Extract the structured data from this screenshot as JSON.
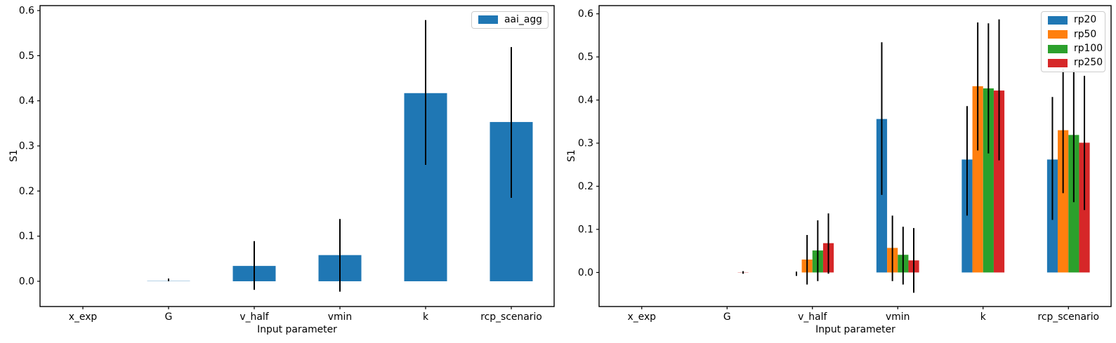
{
  "styles": {
    "background": "#ffffff",
    "spine_color": "#000000",
    "tick_color": "#000000",
    "error_bar_color": "#000000",
    "legend_border": "#cccccc"
  },
  "chart_data": [
    {
      "type": "bar",
      "panel": "left",
      "title": "",
      "xlabel": "Input parameter",
      "ylabel": "S1",
      "categories": [
        "x_exp",
        "G",
        "v_half",
        "vmin",
        "k",
        "rcp_scenario"
      ],
      "yticks": [
        0.0,
        0.1,
        0.2,
        0.3,
        0.4,
        0.5,
        0.6
      ],
      "ylim": [
        -0.056,
        0.611
      ],
      "grid": false,
      "legend_position": "upper right",
      "bar_group_fraction": 0.5,
      "series": [
        {
          "name": "aai_agg",
          "color": "#1f77b4",
          "values": [
            0,
            0.0005,
            0.034,
            0.058,
            0.417,
            0.353
          ],
          "err_low": [
            null,
            0.0002,
            -0.019,
            -0.023,
            0.258,
            0.185
          ],
          "err_high": [
            null,
            0.006,
            0.089,
            0.138,
            0.579,
            0.519
          ]
        }
      ]
    },
    {
      "type": "bar",
      "panel": "right",
      "title": "",
      "xlabel": "Input parameter",
      "ylabel": "S1",
      "categories": [
        "x_exp",
        "G",
        "v_half",
        "vmin",
        "k",
        "rcp_scenario"
      ],
      "yticks": [
        0.0,
        0.1,
        0.2,
        0.3,
        0.4,
        0.5,
        0.6
      ],
      "ylim": [
        -0.079,
        0.619
      ],
      "grid": false,
      "legend_position": "upper right",
      "bar_group_fraction": 0.5,
      "series": [
        {
          "name": "rp20",
          "color": "#1f77b4",
          "values": [
            0,
            0,
            0,
            0.356,
            0.262,
            0.262
          ],
          "err_low": [
            null,
            null,
            -0.008,
            0.18,
            0.132,
            0.122
          ],
          "err_high": [
            null,
            null,
            0.002,
            0.534,
            0.386,
            0.407
          ]
        },
        {
          "name": "rp50",
          "color": "#ff7f0e",
          "values": [
            0,
            0,
            0.03,
            0.057,
            0.432,
            0.33
          ],
          "err_low": [
            null,
            null,
            -0.028,
            -0.02,
            0.283,
            0.184
          ],
          "err_high": [
            null,
            null,
            0.087,
            0.132,
            0.58,
            0.474
          ]
        },
        {
          "name": "rp100",
          "color": "#2ca02c",
          "values": [
            0,
            0,
            0.051,
            0.041,
            0.427,
            0.319
          ],
          "err_low": [
            null,
            null,
            -0.02,
            -0.028,
            0.276,
            0.163
          ],
          "err_high": [
            null,
            null,
            0.121,
            0.106,
            0.578,
            0.47
          ]
        },
        {
          "name": "rp250",
          "color": "#d62728",
          "values": [
            0,
            0.0005,
            0.068,
            0.028,
            0.422,
            0.301
          ],
          "err_low": [
            null,
            -0.003,
            -0.003,
            -0.047,
            0.26,
            0.145
          ],
          "err_high": [
            null,
            0.003,
            0.137,
            0.103,
            0.587,
            0.456
          ]
        }
      ]
    }
  ]
}
